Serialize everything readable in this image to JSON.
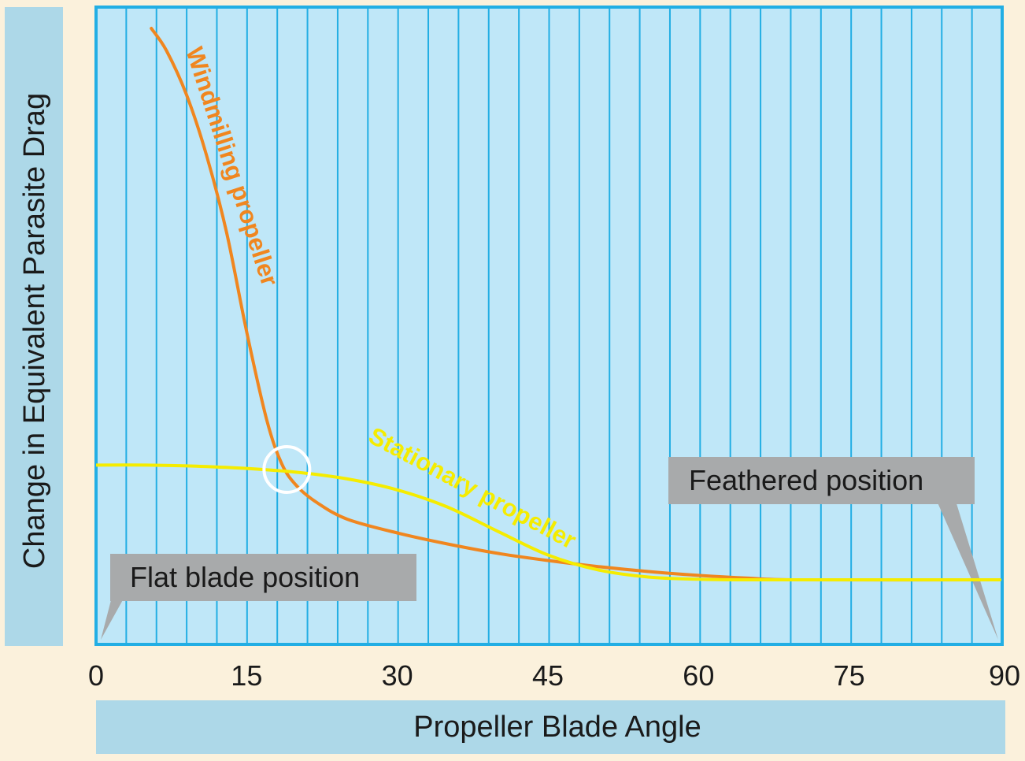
{
  "chart_data": {
    "type": "line",
    "xlabel": "Propeller Blade Angle",
    "ylabel": "Change in Equivalent Parasite Drag",
    "xlim": [
      0,
      90
    ],
    "ylim": [
      0,
      100
    ],
    "x_ticks": [
      "0",
      "15",
      "30",
      "45",
      "60",
      "75",
      "90"
    ],
    "grid": "vertical",
    "series": [
      {
        "name": "Windmilling propeller",
        "color": "#f0861f",
        "x": [
          5.5,
          7,
          9,
          11,
          13,
          15,
          17,
          18.5,
          20,
          22,
          25,
          30,
          35,
          40,
          45,
          50,
          55,
          60,
          65,
          70,
          90
        ],
        "y": [
          100,
          96,
          88,
          77,
          63,
          45,
          29,
          21,
          17,
          14,
          11,
          8.5,
          6.5,
          4.8,
          3.5,
          2.4,
          1.5,
          0.8,
          0.3,
          0,
          0
        ]
      },
      {
        "name": "Stationary propeller",
        "color": "#f5ec00",
        "x": [
          0,
          5,
          10,
          15,
          20,
          25,
          30,
          35,
          40,
          45,
          50,
          55,
          60,
          65,
          70,
          90
        ],
        "y": [
          20.8,
          20.8,
          20.6,
          20.2,
          19.5,
          18.3,
          16.3,
          13.2,
          8.8,
          4.5,
          1.8,
          0.5,
          0.1,
          0,
          0,
          0
        ]
      }
    ],
    "annotations": {
      "flat_blade": "Flat blade position",
      "feathered": "Feathered position"
    },
    "highlight": {
      "x": 19,
      "y": 20
    }
  }
}
